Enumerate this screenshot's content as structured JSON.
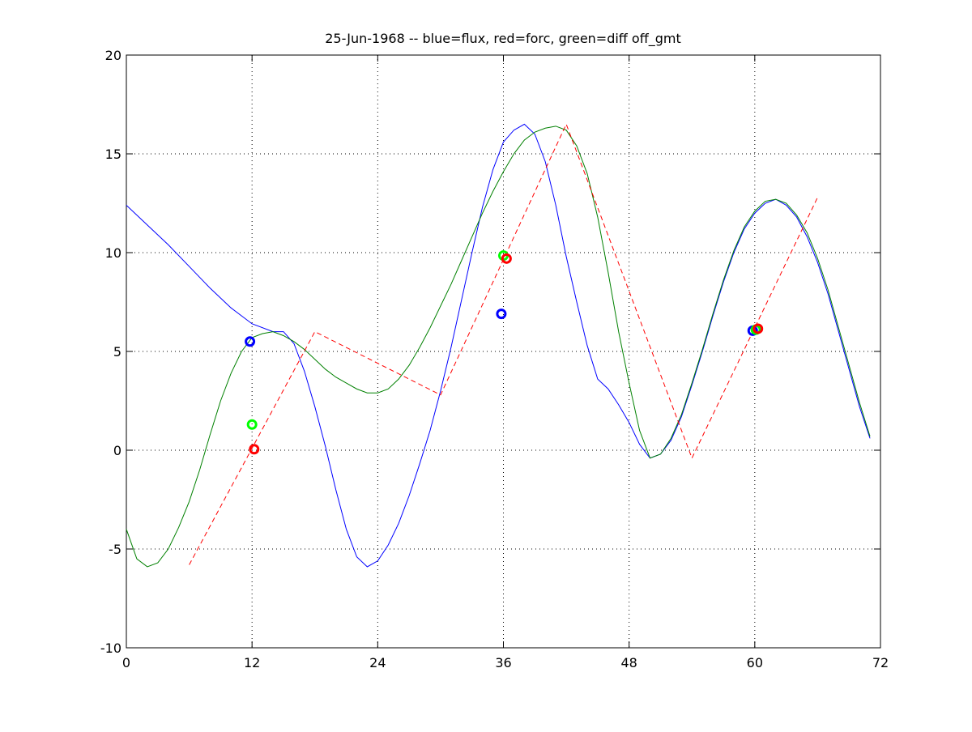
{
  "chart_data": {
    "type": "line",
    "title": "25-Jun-1968 -- blue=flux, red=forc, green=diff off_gmt",
    "xlim": [
      0,
      72
    ],
    "xticks": [
      0,
      12,
      24,
      36,
      48,
      60,
      72
    ],
    "ylim": [
      -10,
      20
    ],
    "yticks": [
      -10,
      -5,
      0,
      5,
      10,
      15,
      20
    ],
    "grid": true,
    "series": [
      {
        "color": "#0000ff",
        "style": "solid",
        "x": [
          0,
          2,
          4,
          6,
          8,
          10,
          12,
          14,
          15,
          16,
          17,
          18,
          19,
          20,
          21,
          22,
          23,
          24,
          25,
          26,
          27,
          28,
          29,
          30,
          31,
          32,
          33,
          34,
          35,
          36,
          37,
          38,
          39,
          40,
          41,
          42,
          43,
          44,
          45,
          46,
          47,
          48,
          49,
          50,
          51,
          52,
          53,
          54,
          55,
          56,
          57,
          58,
          59,
          60,
          61,
          62,
          63,
          64,
          65,
          66,
          67,
          68,
          69,
          70,
          71
        ],
        "values": [
          12.4,
          11.4,
          10.4,
          9.3,
          8.2,
          7.2,
          6.4,
          6.0,
          6.0,
          5.4,
          4.0,
          2.2,
          0.2,
          -2.0,
          -4.0,
          -5.4,
          -5.9,
          -5.6,
          -4.8,
          -3.7,
          -2.3,
          -0.7,
          1.0,
          3.0,
          5.2,
          7.6,
          10.0,
          12.3,
          14.2,
          15.6,
          16.2,
          16.5,
          16.0,
          14.6,
          12.4,
          9.8,
          7.5,
          5.3,
          3.6,
          3.1,
          2.3,
          1.4,
          0.3,
          -0.4,
          -0.2,
          0.5,
          1.7,
          3.3,
          5.0,
          6.8,
          8.5,
          10.0,
          11.2,
          12.0,
          12.5,
          12.7,
          12.4,
          11.8,
          10.8,
          9.5,
          7.9,
          6.0,
          4.1,
          2.2,
          0.6
        ]
      },
      {
        "color": "#008000",
        "style": "solid",
        "x": [
          0,
          1,
          2,
          3,
          4,
          5,
          6,
          7,
          8,
          9,
          10,
          11,
          12,
          13,
          14,
          15,
          16,
          17,
          18,
          19,
          20,
          21,
          22,
          23,
          24,
          25,
          26,
          27,
          28,
          29,
          30,
          31,
          32,
          33,
          34,
          35,
          36,
          37,
          38,
          39,
          40,
          41,
          42,
          43,
          44,
          45,
          46,
          47,
          48,
          49,
          50,
          51,
          52,
          53,
          54,
          55,
          56,
          57,
          58,
          59,
          60,
          61,
          62,
          63,
          64,
          65,
          66,
          67,
          68,
          69,
          70,
          71
        ],
        "values": [
          -4.0,
          -5.5,
          -5.9,
          -5.7,
          -5.0,
          -3.9,
          -2.6,
          -1.0,
          0.8,
          2.5,
          3.9,
          5.0,
          5.7,
          5.9,
          6.0,
          5.8,
          5.5,
          5.1,
          4.6,
          4.1,
          3.7,
          3.4,
          3.1,
          2.9,
          2.9,
          3.1,
          3.6,
          4.3,
          5.2,
          6.2,
          7.3,
          8.4,
          9.6,
          10.8,
          12.0,
          13.1,
          14.1,
          15.0,
          15.7,
          16.1,
          16.3,
          16.4,
          16.2,
          15.4,
          14.0,
          11.8,
          9.0,
          6.0,
          3.4,
          1.0,
          -0.4,
          -0.2,
          0.6,
          1.8,
          3.4,
          5.1,
          6.9,
          8.6,
          10.1,
          11.3,
          12.1,
          12.6,
          12.7,
          12.5,
          11.9,
          11.0,
          9.7,
          8.1,
          6.2,
          4.3,
          2.4,
          0.7
        ]
      },
      {
        "color": "#ff0000",
        "style": "dashed",
        "x": [
          6,
          18,
          30,
          42,
          54,
          66
        ],
        "values": [
          -5.8,
          6.0,
          2.8,
          16.5,
          -0.4,
          12.8
        ]
      },
      {
        "color": "#0000ff",
        "style": "circle",
        "x": [
          11.8,
          35.8,
          59.8
        ],
        "values": [
          5.5,
          6.9,
          6.05
        ]
      },
      {
        "color": "#00ff00",
        "style": "circle",
        "x": [
          12.0,
          36.0,
          60.1
        ],
        "values": [
          1.3,
          9.85,
          6.1
        ]
      },
      {
        "color": "#ff0000",
        "style": "circle",
        "x": [
          12.2,
          36.3,
          60.3
        ],
        "values": [
          0.05,
          9.7,
          6.15
        ]
      }
    ]
  }
}
